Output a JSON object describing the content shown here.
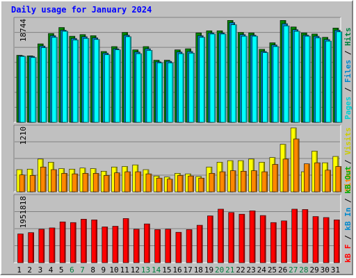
{
  "title": "Daily usage for January 2024",
  "colors": {
    "hits": "#00ffff",
    "files": "#0088cc",
    "pages": "#00ced1",
    "visits": "#ffff00",
    "sites": "#ff8800",
    "kbin": "#008800",
    "kbout": "#00aa00",
    "kbf": "#ff0000",
    "weekday": "#000000",
    "weekend": "#008040"
  },
  "legend_right": {
    "top": [
      {
        "text": "Pages",
        "color": "#00ced1"
      },
      {
        "text": " / ",
        "color": "#000000"
      },
      {
        "text": "Files",
        "color": "#0088cc"
      },
      {
        "text": " / ",
        "color": "#000000"
      },
      {
        "text": "Hits",
        "color": "#008040"
      }
    ],
    "middle": [
      {
        "text": "Sites",
        "color": "#ff8800"
      },
      {
        "text": " / ",
        "color": "#000000"
      },
      {
        "text": "Visits",
        "color": "#cccc00"
      }
    ],
    "bottom": [
      {
        "text": "kB F",
        "color": "#ff0000"
      },
      {
        "text": " / ",
        "color": "#000000"
      },
      {
        "text": "kB In",
        "color": "#0088cc"
      },
      {
        "text": " / ",
        "color": "#000000"
      },
      {
        "text": "kB Out",
        "color": "#00aa00"
      }
    ]
  },
  "chart_data": [
    {
      "type": "bar",
      "panel": "hits-files-pages",
      "max_label": "18744",
      "ylim": [
        0,
        18744
      ],
      "categories": [
        "1",
        "2",
        "3",
        "4",
        "5",
        "6",
        "7",
        "8",
        "9",
        "10",
        "11",
        "12",
        "13",
        "14",
        "15",
        "16",
        "17",
        "18",
        "19",
        "20",
        "21",
        "22",
        "23",
        "24",
        "25",
        "26",
        "27",
        "28",
        "29",
        "30",
        "31"
      ],
      "weekend_days": [
        6,
        7,
        13,
        14,
        20,
        21,
        27,
        28
      ],
      "series": [
        {
          "name": "Hits",
          "values": [
            12300,
            12200,
            14400,
            16300,
            17400,
            15800,
            16100,
            15900,
            13000,
            13900,
            16500,
            13300,
            13900,
            11400,
            11400,
            13300,
            13500,
            16400,
            16800,
            16800,
            18700,
            16500,
            16400,
            13400,
            14600,
            18700,
            17500,
            16400,
            16200,
            15600,
            17300
          ]
        },
        {
          "name": "Files",
          "values": [
            12200,
            12100,
            14000,
            15900,
            16900,
            15400,
            15700,
            15500,
            12700,
            13500,
            16000,
            12900,
            13500,
            11100,
            11200,
            12900,
            13000,
            15900,
            16400,
            16400,
            18300,
            16100,
            16000,
            13000,
            14200,
            18100,
            17000,
            16000,
            15800,
            15200,
            16900
          ]
        },
        {
          "name": "Pages",
          "values": [
            12100,
            11900,
            13700,
            15600,
            16700,
            15100,
            15400,
            15200,
            12400,
            13300,
            15700,
            12600,
            13200,
            10900,
            10900,
            12600,
            12700,
            15600,
            16200,
            16200,
            17900,
            15800,
            15800,
            12800,
            13900,
            17700,
            16700,
            15800,
            15500,
            14900,
            16600
          ]
        }
      ]
    },
    {
      "type": "bar",
      "panel": "visits-sites",
      "max_label": "1210",
      "ylim": [
        0,
        1210
      ],
      "series": [
        {
          "name": "Visits",
          "values": [
            420,
            430,
            620,
            560,
            440,
            430,
            450,
            440,
            390,
            470,
            480,
            510,
            420,
            300,
            280,
            350,
            340,
            290,
            470,
            560,
            590,
            590,
            620,
            560,
            650,
            900,
            1210,
            380,
            770,
            550,
            670
          ]
        },
        {
          "name": "Sites",
          "values": [
            320,
            310,
            470,
            420,
            350,
            340,
            350,
            350,
            310,
            360,
            380,
            380,
            340,
            260,
            240,
            310,
            300,
            260,
            350,
            380,
            400,
            390,
            400,
            380,
            520,
            620,
            1000,
            530,
            550,
            410,
            480
          ]
        }
      ]
    },
    {
      "type": "bar",
      "panel": "kb",
      "max_label": "1951818",
      "ylim": [
        0,
        1951818
      ],
      "series": [
        {
          "name": "kB F",
          "values": [
            860000,
            900000,
            1000000,
            1040000,
            1220000,
            1200000,
            1300000,
            1280000,
            1070000,
            1090000,
            1320000,
            1000000,
            1160000,
            990000,
            1000000,
            910000,
            990000,
            1120000,
            1400000,
            1600000,
            1500000,
            1450000,
            1550000,
            1410000,
            1200000,
            1250000,
            1600000,
            1590000,
            1380000,
            1350000,
            1280000
          ]
        }
      ]
    }
  ]
}
